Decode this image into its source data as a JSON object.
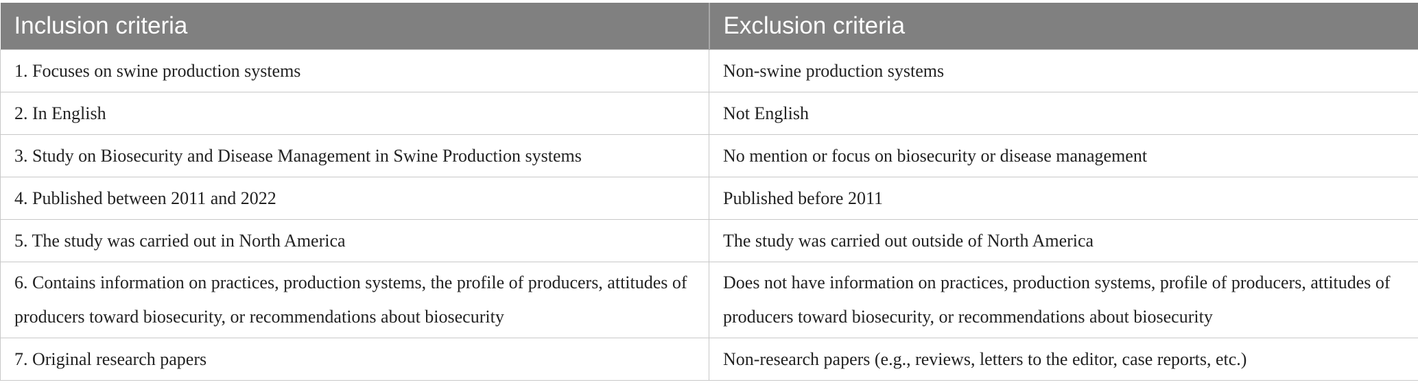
{
  "header": {
    "inclusion": "Inclusion criteria",
    "exclusion": "Exclusion criteria"
  },
  "rows": [
    {
      "inclusion": "1. Focuses on swine production systems",
      "exclusion": "Non-swine production systems"
    },
    {
      "inclusion": "2. In English",
      "exclusion": "Not English"
    },
    {
      "inclusion": "3. Study on Biosecurity and Disease Management in Swine Production systems",
      "exclusion": "No mention or focus on biosecurity or disease management"
    },
    {
      "inclusion": "4. Published between 2011 and 2022",
      "exclusion": "Published before 2011"
    },
    {
      "inclusion": "5. The study was carried out in North America",
      "exclusion": "The study was carried out outside of North America"
    },
    {
      "inclusion": "6. Contains information on practices, production systems, the profile of producers, attitudes of producers toward biosecurity, or recommendations about biosecurity",
      "exclusion": "Does not have information on practices, production systems, profile of producers, attitudes of producers toward biosecurity, or recommendations about biosecurity"
    },
    {
      "inclusion": "7. Original research papers",
      "exclusion": "Non-research papers (e.g., reviews, letters to the editor, case reports, etc.)"
    }
  ]
}
